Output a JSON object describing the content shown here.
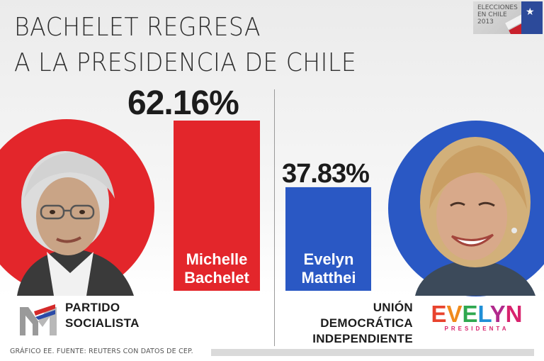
{
  "title_line1": "BACHELET REGRESA",
  "title_line2": "A LA PRESIDENCIA DE CHILE",
  "badge_text": [
    "ELECCIONES",
    "EN CHILE",
    "2013"
  ],
  "candidates": [
    {
      "name_line1": "Michelle",
      "name_line2": "Bachelet",
      "percent_label": "62.16%",
      "party_line1": "PARTIDO",
      "party_line2": "SOCIALISTA",
      "color": "#e3262b"
    },
    {
      "name_line1": "Evelyn",
      "name_line2": "Matthei",
      "percent_label": "37.83%",
      "party_line1": "UNIÓN",
      "party_line2": "DEMOCRÁTICA",
      "party_line3": "INDEPENDIENTE",
      "color": "#2a58c4"
    }
  ],
  "evelyn_logo": {
    "letters": [
      "E",
      "V",
      "E",
      "L",
      "Y",
      "N"
    ],
    "colors": [
      "#e8432e",
      "#f08a1c",
      "#2fa84f",
      "#1f8fd6",
      "#b12a8c",
      "#d8236e"
    ],
    "subtitle": "PRESIDENTA"
  },
  "footer_text": "GRÁFICO EE. FUENTE: REUTERS CON DATOS DE CEP.",
  "chart_data": {
    "type": "bar",
    "title": "BACHELET REGRESA A LA PRESIDENCIA DE CHILE",
    "categories": [
      "Michelle Bachelet",
      "Evelyn Matthei"
    ],
    "values": [
      62.16,
      37.83
    ],
    "unit": "%",
    "colors": [
      "#e3262b",
      "#2a58c4"
    ],
    "xlabel": "",
    "ylabel": "",
    "legend": "none",
    "grid": false
  }
}
